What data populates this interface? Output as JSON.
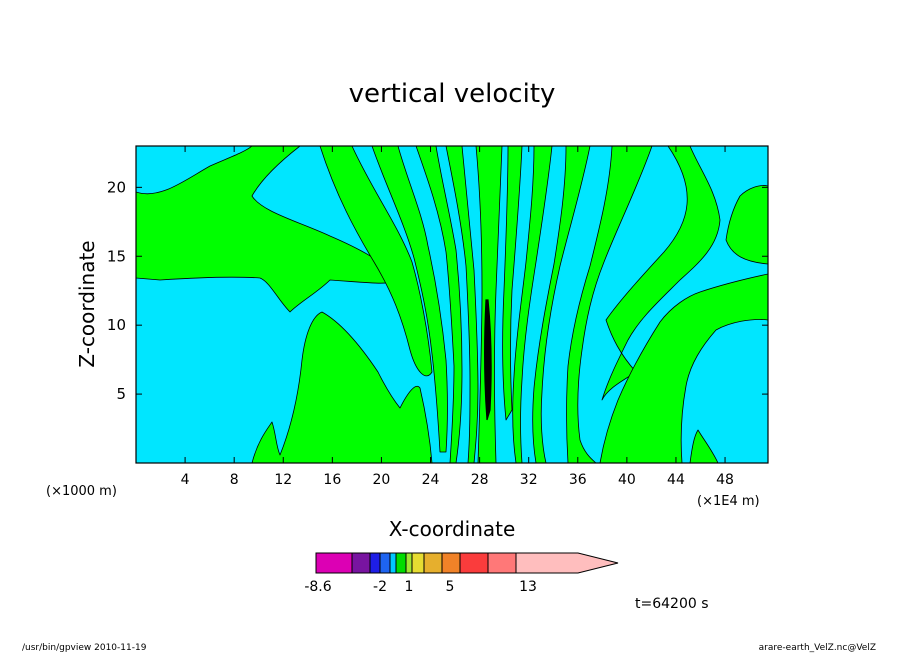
{
  "chart_data": {
    "type": "heatmap",
    "title": "vertical velocity",
    "xlabel": "X-coordinate",
    "ylabel": "Z-coordinate",
    "x_scale_note": "(×1000 m)",
    "x_unit_note": "(×1E4 m)",
    "xlim": [
      0,
      51.5
    ],
    "ylim": [
      0,
      23
    ],
    "x_ticks": [
      "4",
      "8",
      "12",
      "16",
      "20",
      "24",
      "28",
      "32",
      "36",
      "40",
      "44",
      "48"
    ],
    "y_ticks": [
      "5",
      "10",
      "15",
      "20"
    ],
    "colorbar": {
      "labels": [
        "-8.6",
        "-2",
        "1",
        "5",
        "13"
      ],
      "colors": [
        "#dc00b4",
        "#7814a0",
        "#1e1ee6",
        "#1e64f0",
        "#00c8ff",
        "#00dc00",
        "#a0e632",
        "#e6dc32",
        "#e6af2d",
        "#f08228",
        "#fa3c3c",
        "#ff7878",
        "#ffbebe"
      ]
    },
    "colors": {
      "background": "#00e6ff",
      "updraft": "#00ff00",
      "core": "#000000"
    },
    "time": "t=64200 s"
  },
  "footer": {
    "left": "/usr/bin/gpview  2010-11-19",
    "right": "arare-earth_VelZ.nc@VelZ"
  }
}
